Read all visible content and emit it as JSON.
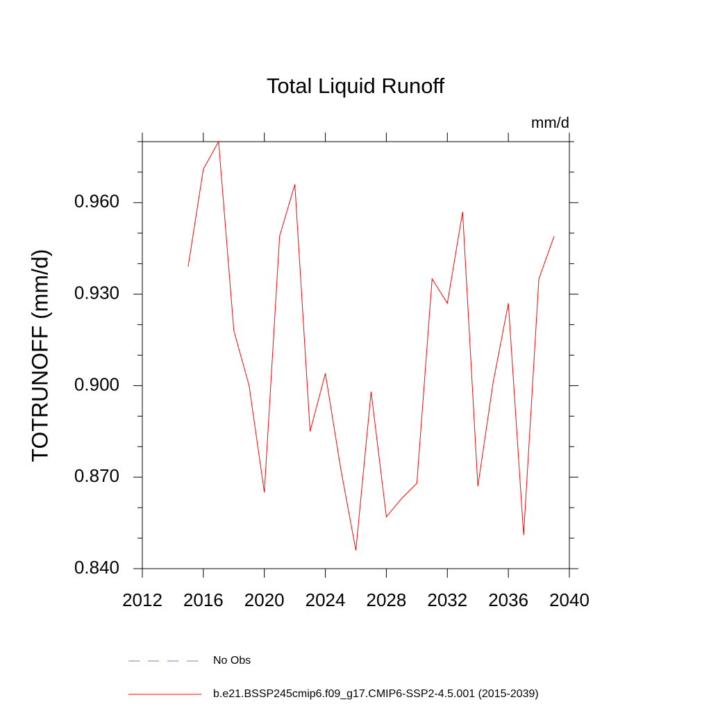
{
  "chart_data": {
    "type": "line",
    "title": "Total Liquid Runoff",
    "units": "mm/d",
    "y_label": "TOTRUNOFF  (mm/d)",
    "x": [
      2015,
      2016,
      2017,
      2018,
      2019,
      2020,
      2021,
      2022,
      2023,
      2024,
      2025,
      2026,
      2027,
      2028,
      2029,
      2030,
      2031,
      2032,
      2033,
      2034,
      2035,
      2036,
      2037,
      2038,
      2039
    ],
    "series": [
      {
        "name": "No Obs",
        "color": "#7b7bc4",
        "dashed": true,
        "values": [
          null,
          null,
          null,
          null,
          null,
          null,
          null,
          null,
          null,
          null,
          null,
          null,
          null,
          null,
          null,
          null,
          null,
          null,
          null,
          null,
          null,
          null,
          null,
          null,
          null
        ]
      },
      {
        "name": "b.e21.BSSP245cmip6.f09_g17.CMIP6-SSP2-4.5.001 (2015-2039)",
        "color": "#ff0000",
        "dashed": false,
        "values": [
          0.939,
          0.971,
          0.98,
          0.918,
          0.9,
          0.865,
          0.949,
          0.966,
          0.885,
          0.904,
          0.873,
          0.846,
          0.898,
          0.857,
          0.863,
          0.868,
          0.935,
          0.927,
          0.957,
          0.867,
          0.901,
          0.927,
          0.851,
          0.935,
          0.949
        ]
      }
    ],
    "xlim": [
      2012,
      2040
    ],
    "xticks": [
      2012,
      2016,
      2020,
      2024,
      2028,
      2032,
      2036,
      2040
    ],
    "ylim": [
      0.84,
      0.98
    ],
    "yticks": [
      {
        "value": 0.84,
        "label": "0.840"
      },
      {
        "value": 0.87,
        "label": "0.870"
      },
      {
        "value": 0.9,
        "label": "0.900"
      },
      {
        "value": 0.93,
        "label": "0.930"
      },
      {
        "value": 0.96,
        "label": "0.960"
      }
    ],
    "yminorticks": [
      0.85,
      0.86,
      0.88,
      0.89,
      0.91,
      0.92,
      0.94,
      0.95,
      0.97,
      0.98
    ]
  }
}
